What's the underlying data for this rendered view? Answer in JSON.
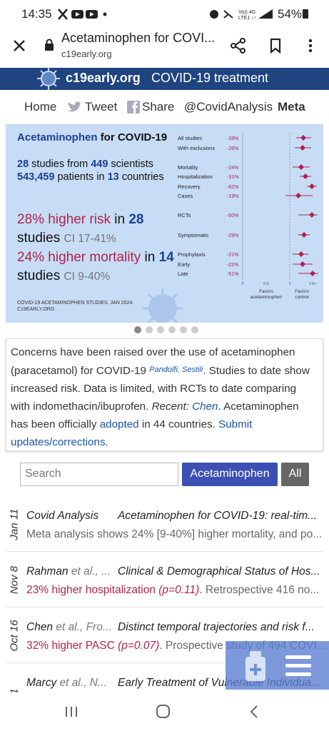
{
  "status_bar": {
    "time": "14:35",
    "battery": "54%"
  },
  "browser": {
    "title": "Acetaminophen for COVI...",
    "url": "c19early.org"
  },
  "site_header": {
    "brand": "c19early.org",
    "tagline": "COVID-19 treatment"
  },
  "nav": [
    "Home",
    "Tweet",
    "Share",
    "@CovidAnalysis",
    "Meta"
  ],
  "summary_card": {
    "title": [
      "Acetaminophen",
      "for COVID-19"
    ],
    "studies": [
      "28",
      "studies from",
      "449",
      "scientists"
    ],
    "patients": [
      "543,459",
      "patients in",
      "13",
      "countries"
    ],
    "risk": [
      "28% higher risk",
      "in",
      "28",
      "studies",
      "CI 17-41%"
    ],
    "mortality": [
      "24% higher mortality",
      "in",
      "14",
      "studies",
      "CI 9-40%"
    ],
    "footer": [
      "COVID-19 ACETAMINOPHEN STUDIES. JAN 2024.",
      "C19EARLY.ORG"
    ]
  },
  "forest_plot": {
    "rows": [
      {
        "label": "All studies",
        "effect": "-28%"
      },
      {
        "label": "With exclusions",
        "effect": "-26%"
      },
      {
        "label": "Mortality",
        "effect": "-24%"
      },
      {
        "label": "Hospitalization",
        "effect": "-31%"
      },
      {
        "label": "Recovery",
        "effect": "-62%"
      },
      {
        "label": "Cases",
        "effect": "-19%"
      },
      {
        "label": "RCTs",
        "effect": "-50%"
      },
      {
        "label": "Symptomatic",
        "effect": "-29%"
      },
      {
        "label": "Prophylaxis",
        "effect": "-21%"
      },
      {
        "label": "Early",
        "effect": "-22%"
      },
      {
        "label": "Late",
        "effect": "-51%"
      }
    ],
    "axis_labels": [
      "0",
      "0.5",
      "1",
      "1.5+"
    ],
    "favors": [
      [
        "Favors",
        "acetaminophen"
      ],
      [
        "Favors",
        "control"
      ]
    ]
  },
  "intro": {
    "segments": [
      "Concerns have been raised over the use of acetaminophen (paracetamol) for COVID-19",
      "Pandolfi, Sestili",
      ". Studies to date show increased risk. Data is limited, with RCTs to date comparing with indomethacin/ibuprofen.",
      "Recent:",
      "Chen",
      ". Acetaminophen has been officially",
      "adopted",
      "in 44 countries.",
      "Submit updates/corrections."
    ]
  },
  "search": {
    "placeholder": "Search",
    "buttons": [
      "Acetaminophen",
      "All"
    ]
  },
  "items": [
    {
      "date": "Jan 11",
      "author": "Covid Analysis",
      "title": "Acetaminophen for COVID-19: real-tim...",
      "summary": "Meta analysis shows 24% [9-40%] higher mortality, and po..."
    },
    {
      "date": "Nov 8",
      "author": "Rahman",
      "author_rest": "et al., ...",
      "title": "Clinical & Demographical Status of Hos...",
      "result": "23% higher hospitalization",
      "p": "(p=0.11)",
      "summary": ". Retrospective 416 no..."
    },
    {
      "date": "Oct 16",
      "author": "Chen",
      "author_rest": "et al., Fro...",
      "title": "Distinct temporal trajectories and risk f...",
      "result": "32% higher PASC",
      "p": "(p=0.07)",
      "summary": ". Prospective study of 494 COVI..."
    },
    {
      "date": "1",
      "author": "Marcy",
      "author_rest": "et al., N...",
      "title": "Early Treatment of Vulnerable Individua..."
    }
  ]
}
